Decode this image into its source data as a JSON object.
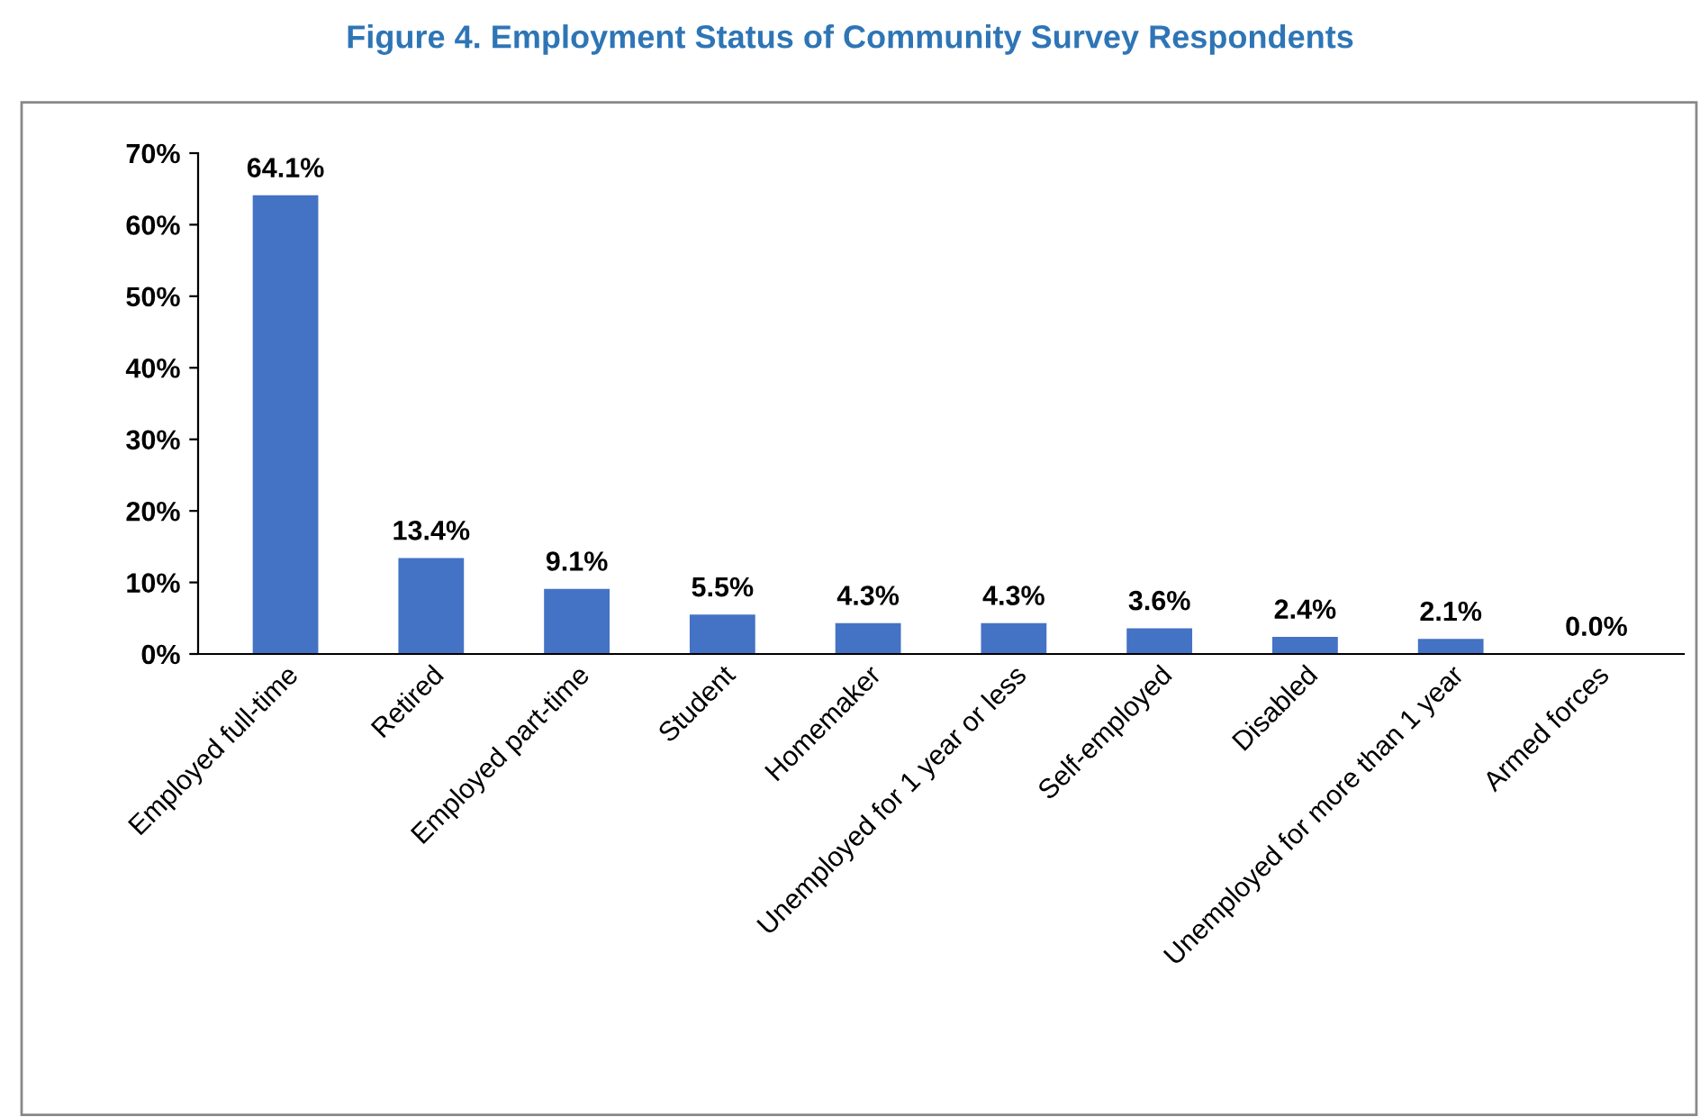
{
  "chart_data": {
    "type": "bar",
    "title": "Figure 4. Employment Status of Community Survey Respondents",
    "categories": [
      "Employed full-time",
      "Retired",
      "Employed part-time",
      "Student",
      "Homemaker",
      "Unemployed for 1 year or less",
      "Self-employed",
      "Disabled",
      "Unemployed for more than 1 year",
      "Armed forces"
    ],
    "values": [
      64.1,
      13.4,
      9.1,
      5.5,
      4.3,
      4.3,
      3.6,
      2.4,
      2.1,
      0.0
    ],
    "value_labels": [
      "64.1%",
      "13.4%",
      "9.1%",
      "5.5%",
      "4.3%",
      "4.3%",
      "3.6%",
      "2.4%",
      "2.1%",
      "0.0%"
    ],
    "color": "#4472c4",
    "ylim": [
      0,
      70
    ],
    "yticks": [
      {
        "value": 0,
        "label": "0%"
      },
      {
        "value": 10,
        "label": "10%"
      },
      {
        "value": 20,
        "label": "20%"
      },
      {
        "value": 30,
        "label": "30%"
      },
      {
        "value": 40,
        "label": "40%"
      },
      {
        "value": 50,
        "label": "50%"
      },
      {
        "value": 60,
        "label": "60%"
      },
      {
        "value": 70,
        "label": "70%"
      }
    ],
    "grid": false,
    "legend": false
  }
}
